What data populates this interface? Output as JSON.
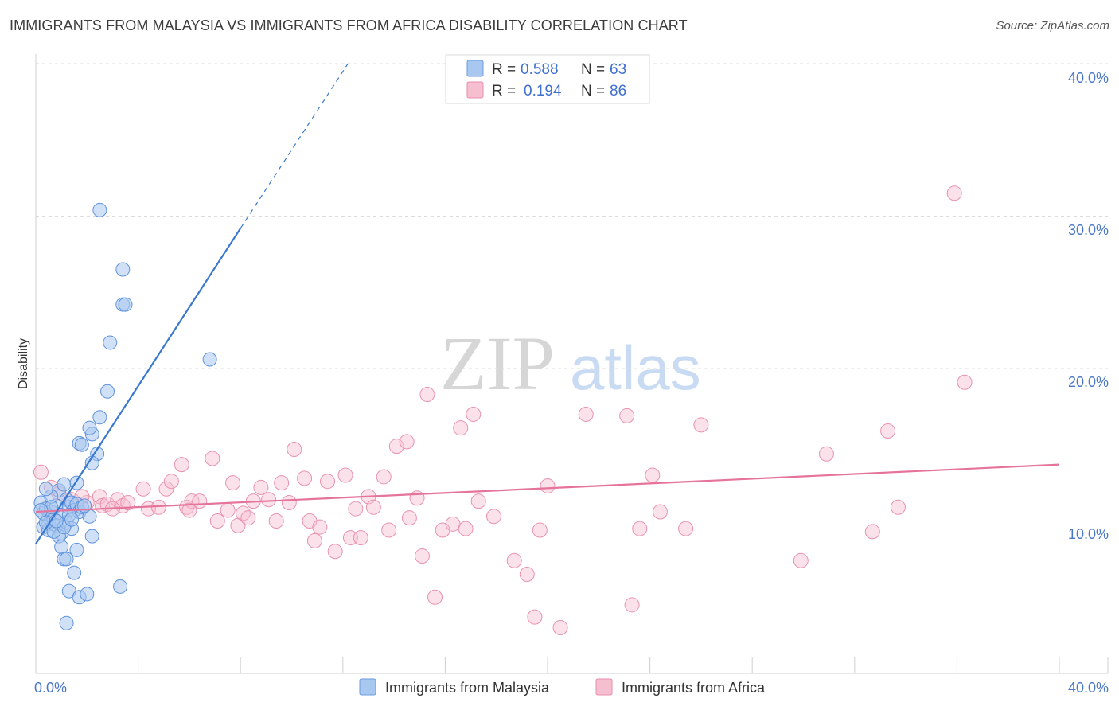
{
  "title": "IMMIGRANTS FROM MALAYSIA VS IMMIGRANTS FROM AFRICA DISABILITY CORRELATION CHART",
  "source": "Source: ZipAtlas.com",
  "watermark": {
    "zip": "ZIP",
    "atlas": "atlas"
  },
  "legend_top": {
    "r_label": "R =",
    "n_label": "N =",
    "items": [
      {
        "r": "0.588",
        "n": "63",
        "color": "#a9c8f0"
      },
      {
        "r": "0.194",
        "n": "86",
        "color": "#f6bfd0"
      }
    ]
  },
  "legend_bottom": {
    "items": [
      {
        "label": "Immigrants from Malaysia",
        "color": "#a9c8f0"
      },
      {
        "label": "Immigrants from Africa",
        "color": "#f6bfd0"
      }
    ]
  },
  "chart_data": {
    "type": "scatter",
    "title": "IMMIGRANTS FROM MALAYSIA VS IMMIGRANTS FROM AFRICA DISABILITY CORRELATION CHART",
    "ylabel": "Disability",
    "xlabel": "",
    "xlim": [
      0,
      40
    ],
    "ylim": [
      0,
      40
    ],
    "x_tick_labels": [
      "0.0%",
      "40.0%"
    ],
    "y_tick_labels": [
      "10.0%",
      "20.0%",
      "30.0%",
      "40.0%"
    ],
    "y_ticks": [
      10,
      20,
      30,
      40
    ],
    "colors": {
      "malaysia": "#3a78d0",
      "africa": "#e5739a"
    },
    "series": [
      {
        "name": "Immigrants from Malaysia",
        "r": 0.588,
        "n": 63,
        "trend": {
          "x0": 0.0,
          "y0": 8.5,
          "x1": 8.0,
          "y1": 29.2,
          "dash_x1": 12.2,
          "dash_y1": 40.0
        },
        "points": [
          [
            0.2,
            11.2
          ],
          [
            0.3,
            10.5
          ],
          [
            0.4,
            10.8
          ],
          [
            0.5,
            10.2
          ],
          [
            0.6,
            10.6
          ],
          [
            0.5,
            9.8
          ],
          [
            0.7,
            10.1
          ],
          [
            0.8,
            11.0
          ],
          [
            0.9,
            12.0
          ],
          [
            1.0,
            10.4
          ],
          [
            0.6,
            11.6
          ],
          [
            0.4,
            12.1
          ],
          [
            1.1,
            12.4
          ],
          [
            1.2,
            11.4
          ],
          [
            1.3,
            10.9
          ],
          [
            1.4,
            11.2
          ],
          [
            1.5,
            10.7
          ],
          [
            1.6,
            11.1
          ],
          [
            1.7,
            10.6
          ],
          [
            1.8,
            10.9
          ],
          [
            0.3,
            9.6
          ],
          [
            0.5,
            9.4
          ],
          [
            0.8,
            9.7
          ],
          [
            1.0,
            9.2
          ],
          [
            1.2,
            9.9
          ],
          [
            1.4,
            9.5
          ],
          [
            0.9,
            9.0
          ],
          [
            0.7,
            9.3
          ],
          [
            1.1,
            9.6
          ],
          [
            0.4,
            9.9
          ],
          [
            1.6,
            12.5
          ],
          [
            1.7,
            15.1
          ],
          [
            1.8,
            15.0
          ],
          [
            2.2,
            15.7
          ],
          [
            2.1,
            16.1
          ],
          [
            2.5,
            16.8
          ],
          [
            2.8,
            18.5
          ],
          [
            2.9,
            21.7
          ],
          [
            3.4,
            24.2
          ],
          [
            3.5,
            24.2
          ],
          [
            3.4,
            26.5
          ],
          [
            2.5,
            30.4
          ],
          [
            2.4,
            14.4
          ],
          [
            2.2,
            13.8
          ],
          [
            1.0,
            8.3
          ],
          [
            1.6,
            8.1
          ],
          [
            1.1,
            7.5
          ],
          [
            1.2,
            7.5
          ],
          [
            1.5,
            6.6
          ],
          [
            1.3,
            5.4
          ],
          [
            1.7,
            5.0
          ],
          [
            2.0,
            5.2
          ],
          [
            3.3,
            5.7
          ],
          [
            1.2,
            3.3
          ],
          [
            2.1,
            10.3
          ],
          [
            2.2,
            9.0
          ],
          [
            6.8,
            20.6
          ],
          [
            0.8,
            10.0
          ],
          [
            1.3,
            10.4
          ],
          [
            0.6,
            10.9
          ],
          [
            1.4,
            10.1
          ],
          [
            0.2,
            10.7
          ],
          [
            1.9,
            11.0
          ]
        ]
      },
      {
        "name": "Immigrants from Africa",
        "r": 0.194,
        "n": 86,
        "trend": {
          "x0": 0.0,
          "y0": 10.6,
          "x1": 40.0,
          "y1": 13.7
        },
        "points": [
          [
            0.2,
            13.2
          ],
          [
            0.6,
            12.2
          ],
          [
            0.9,
            11.8
          ],
          [
            1.4,
            11.4
          ],
          [
            2.0,
            11.2
          ],
          [
            2.5,
            11.6
          ],
          [
            2.6,
            11.0
          ],
          [
            2.8,
            11.1
          ],
          [
            3.2,
            11.4
          ],
          [
            3.4,
            11.0
          ],
          [
            3.6,
            11.2
          ],
          [
            4.2,
            12.1
          ],
          [
            4.4,
            10.8
          ],
          [
            4.8,
            10.9
          ],
          [
            5.1,
            12.1
          ],
          [
            5.3,
            12.6
          ],
          [
            5.7,
            13.7
          ],
          [
            5.9,
            10.9
          ],
          [
            6.1,
            11.3
          ],
          [
            6.4,
            11.3
          ],
          [
            6.9,
            14.1
          ],
          [
            7.1,
            10.0
          ],
          [
            7.5,
            10.7
          ],
          [
            7.7,
            12.5
          ],
          [
            7.9,
            9.7
          ],
          [
            8.1,
            10.5
          ],
          [
            8.5,
            11.3
          ],
          [
            8.8,
            12.2
          ],
          [
            9.1,
            11.4
          ],
          [
            9.4,
            10.0
          ],
          [
            9.6,
            12.5
          ],
          [
            9.9,
            11.2
          ],
          [
            10.1,
            14.7
          ],
          [
            10.5,
            12.8
          ],
          [
            10.7,
            10.0
          ],
          [
            10.9,
            8.7
          ],
          [
            11.1,
            9.6
          ],
          [
            11.4,
            12.6
          ],
          [
            11.7,
            8.0
          ],
          [
            12.1,
            13.0
          ],
          [
            12.3,
            8.9
          ],
          [
            12.5,
            10.8
          ],
          [
            12.7,
            8.9
          ],
          [
            13.0,
            11.6
          ],
          [
            13.2,
            10.9
          ],
          [
            13.6,
            12.9
          ],
          [
            13.8,
            9.4
          ],
          [
            14.1,
            14.9
          ],
          [
            14.5,
            15.2
          ],
          [
            14.6,
            10.2
          ],
          [
            14.9,
            11.5
          ],
          [
            15.1,
            7.7
          ],
          [
            15.3,
            18.3
          ],
          [
            15.6,
            5.0
          ],
          [
            15.9,
            9.4
          ],
          [
            16.3,
            9.8
          ],
          [
            16.6,
            16.1
          ],
          [
            16.8,
            9.5
          ],
          [
            17.1,
            17.0
          ],
          [
            17.3,
            11.3
          ],
          [
            17.9,
            10.3
          ],
          [
            18.7,
            7.4
          ],
          [
            19.2,
            6.5
          ],
          [
            19.5,
            3.7
          ],
          [
            19.7,
            9.4
          ],
          [
            20.0,
            12.3
          ],
          [
            20.5,
            3.0
          ],
          [
            21.5,
            17.0
          ],
          [
            23.1,
            16.9
          ],
          [
            23.3,
            4.5
          ],
          [
            23.6,
            9.5
          ],
          [
            24.1,
            13.0
          ],
          [
            24.4,
            10.6
          ],
          [
            25.4,
            9.5
          ],
          [
            26.0,
            16.3
          ],
          [
            29.9,
            7.4
          ],
          [
            30.9,
            14.4
          ],
          [
            32.7,
            9.3
          ],
          [
            33.3,
            15.9
          ],
          [
            33.7,
            10.9
          ],
          [
            35.9,
            31.5
          ],
          [
            36.3,
            19.1
          ],
          [
            1.8,
            11.6
          ],
          [
            3.0,
            10.8
          ],
          [
            6.0,
            10.7
          ],
          [
            8.3,
            10.2
          ]
        ]
      }
    ]
  }
}
